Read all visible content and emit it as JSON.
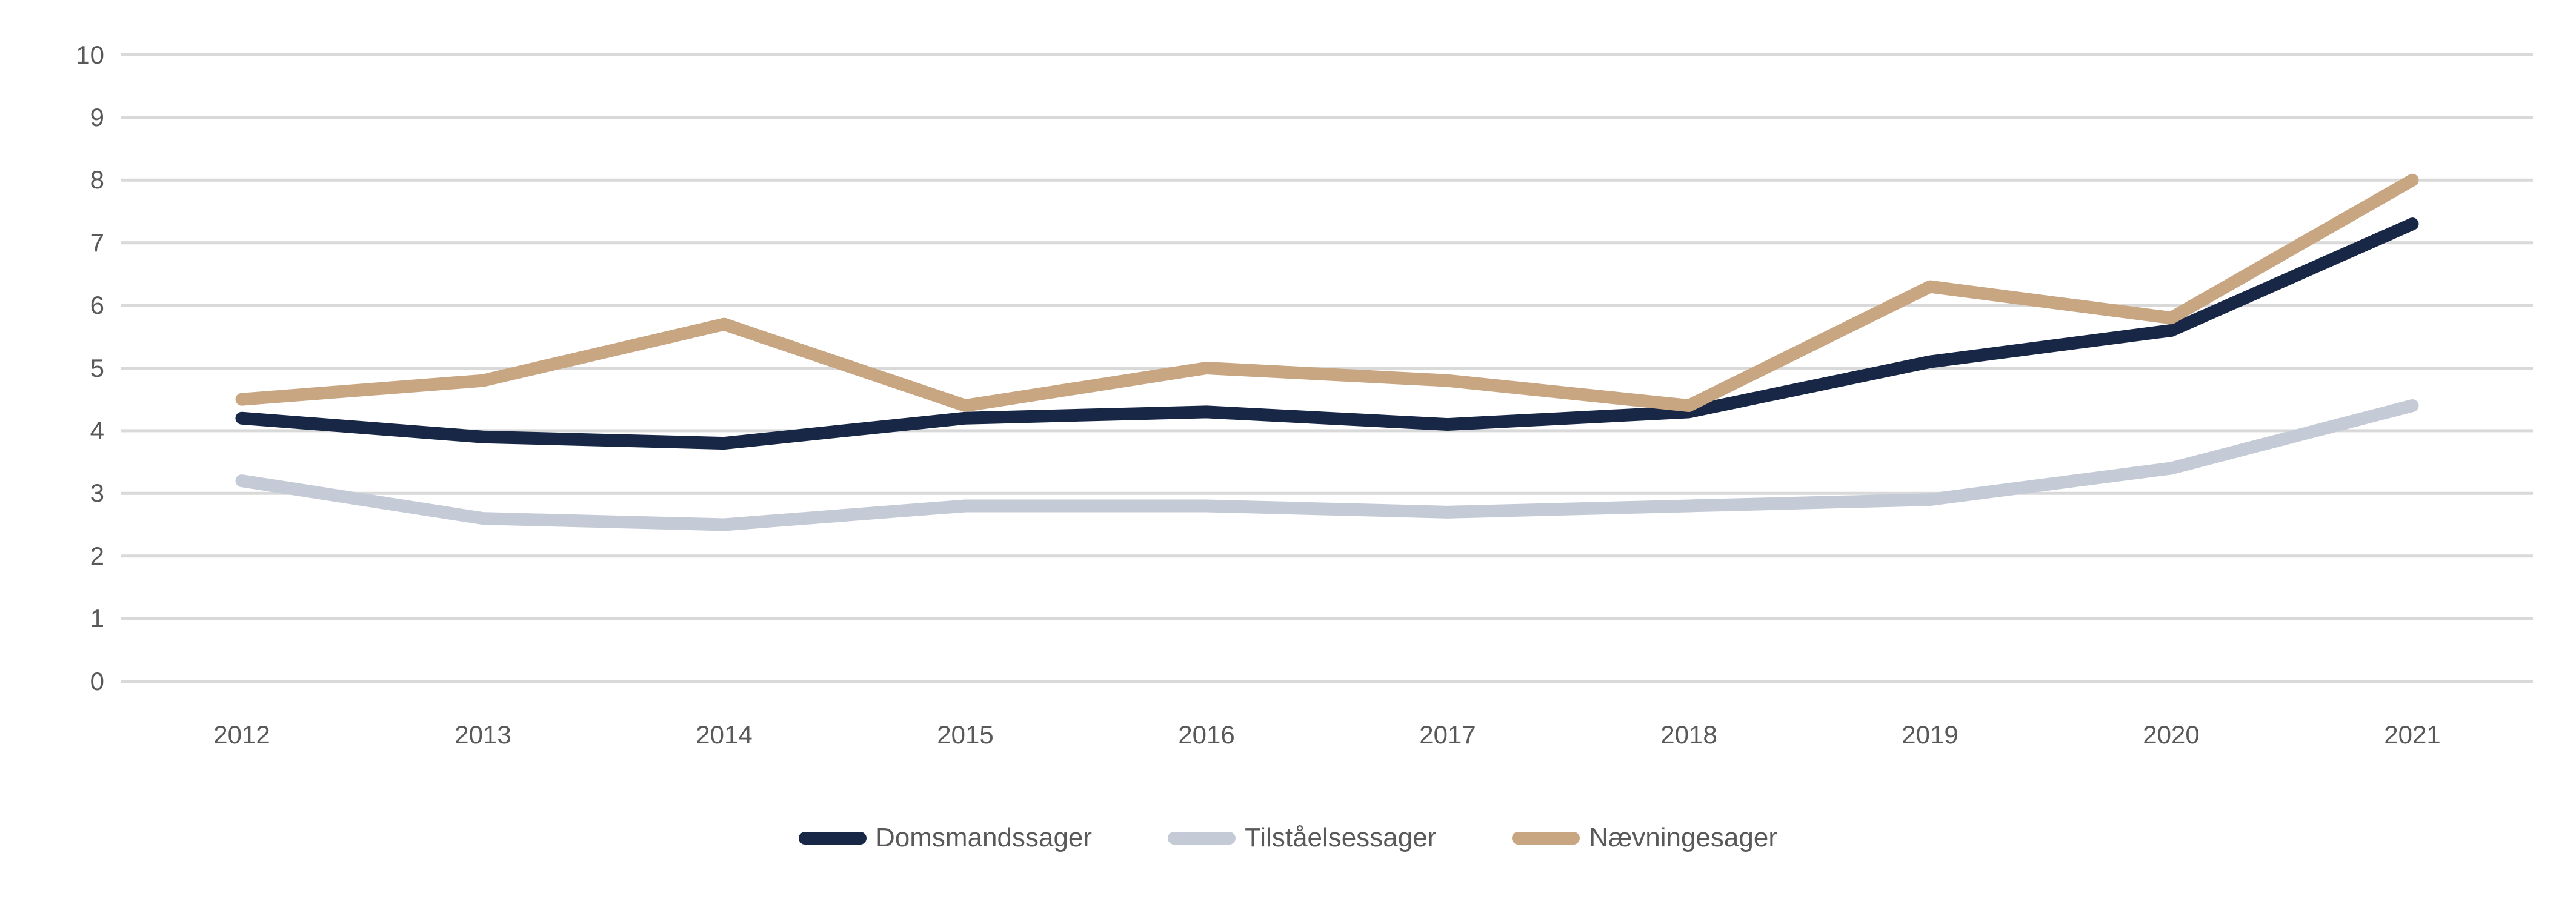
{
  "chart_data": {
    "type": "line",
    "title": "",
    "categories": [
      "2012",
      "2013",
      "2014",
      "2015",
      "2016",
      "2017",
      "2018",
      "2019",
      "2020",
      "2021"
    ],
    "series": [
      {
        "name": "Domsmandssager",
        "color": "#172745",
        "values": [
          4.2,
          3.9,
          3.8,
          4.2,
          4.3,
          4.1,
          4.3,
          5.1,
          5.6,
          7.3
        ]
      },
      {
        "name": "Tilståelsessager",
        "color": "#c5cbd6",
        "values": [
          3.2,
          2.6,
          2.5,
          2.8,
          2.8,
          2.7,
          2.8,
          2.9,
          3.4,
          4.4
        ]
      },
      {
        "name": "Nævningesager",
        "color": "#c8a682",
        "values": [
          4.5,
          4.8,
          5.7,
          4.4,
          5.0,
          4.8,
          4.4,
          6.3,
          5.8,
          8.0
        ]
      }
    ],
    "xlabel": "",
    "ylabel": "",
    "yaxis": {
      "min": 0,
      "max": 10,
      "step": 1,
      "tick_labels": [
        "0",
        "1",
        "2",
        "3",
        "4",
        "5",
        "6",
        "7",
        "8",
        "9",
        "10"
      ]
    },
    "grid": true,
    "legend_position": "bottom",
    "gridline_color": "#d9d9d9",
    "tick_text_color": "#595959",
    "legend_text_color": "#595959",
    "background_color": "#ffffff"
  }
}
